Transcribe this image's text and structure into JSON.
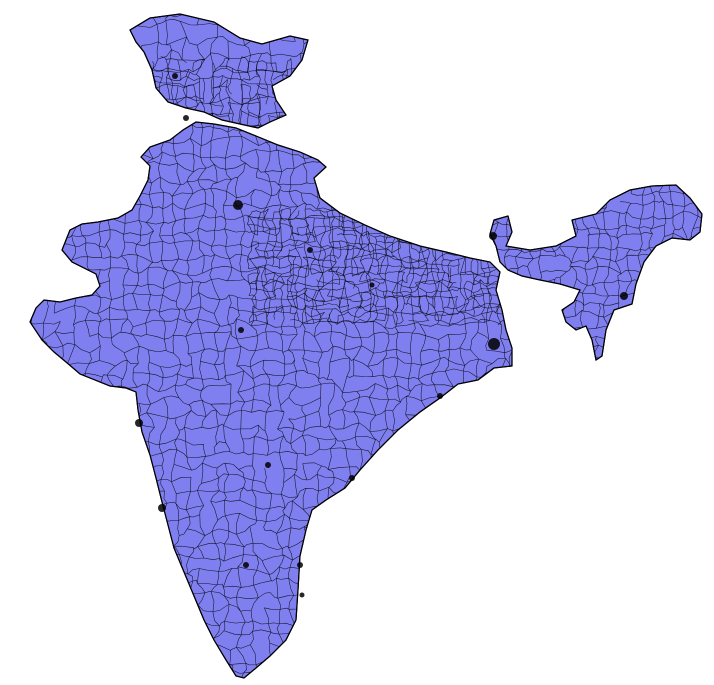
{
  "map": {
    "fill_color": "#7f7ff0",
    "stroke_color": "#000000",
    "background_color": "#ffffff",
    "regions": [
      "mainland",
      "northern-territories",
      "northeast"
    ],
    "boundary_style": "dense subdivision boundaries"
  }
}
